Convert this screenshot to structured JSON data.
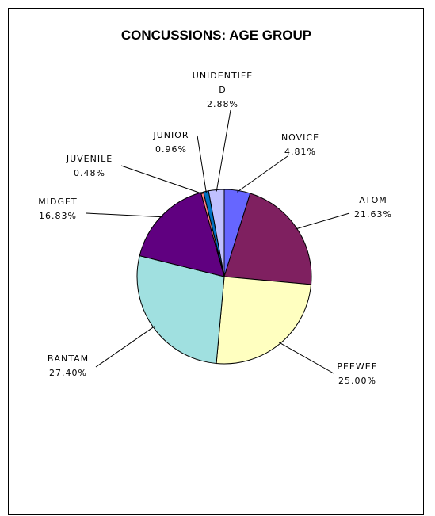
{
  "chart_data": {
    "type": "pie",
    "title": "CONCUSSIONS: AGE GROUP",
    "slices": [
      {
        "label": "NOVICE",
        "label_lines": [
          "NOVICE"
        ],
        "value": 4.81,
        "pct_text": "4.81%",
        "color": "#6666ff"
      },
      {
        "label": "ATOM",
        "label_lines": [
          "ATOM"
        ],
        "value": 21.63,
        "pct_text": "21.63%",
        "color": "#7f2060"
      },
      {
        "label": "PEEWEE",
        "label_lines": [
          "PEEWEE"
        ],
        "value": 25.0,
        "pct_text": "25.00%",
        "color": "#ffffc0"
      },
      {
        "label": "BANTAM",
        "label_lines": [
          "BANTAM"
        ],
        "value": 27.4,
        "pct_text": "27.40%",
        "color": "#a0e0e0"
      },
      {
        "label": "MIDGET",
        "label_lines": [
          "MIDGET"
        ],
        "value": 16.83,
        "pct_text": "16.83%",
        "color": "#600080"
      },
      {
        "label": "JUVENILE",
        "label_lines": [
          "JUVENILE"
        ],
        "value": 0.48,
        "pct_text": "0.48%",
        "color": "#ff8080"
      },
      {
        "label": "JUNIOR",
        "label_lines": [
          "JUNIOR"
        ],
        "value": 0.96,
        "pct_text": "0.96%",
        "color": "#0070c0"
      },
      {
        "label": "UNIDENTIFED",
        "label_lines": [
          "UNIDENTIFE",
          "D"
        ],
        "value": 2.88,
        "pct_text": "2.88%",
        "color": "#c0c0ff"
      }
    ]
  }
}
